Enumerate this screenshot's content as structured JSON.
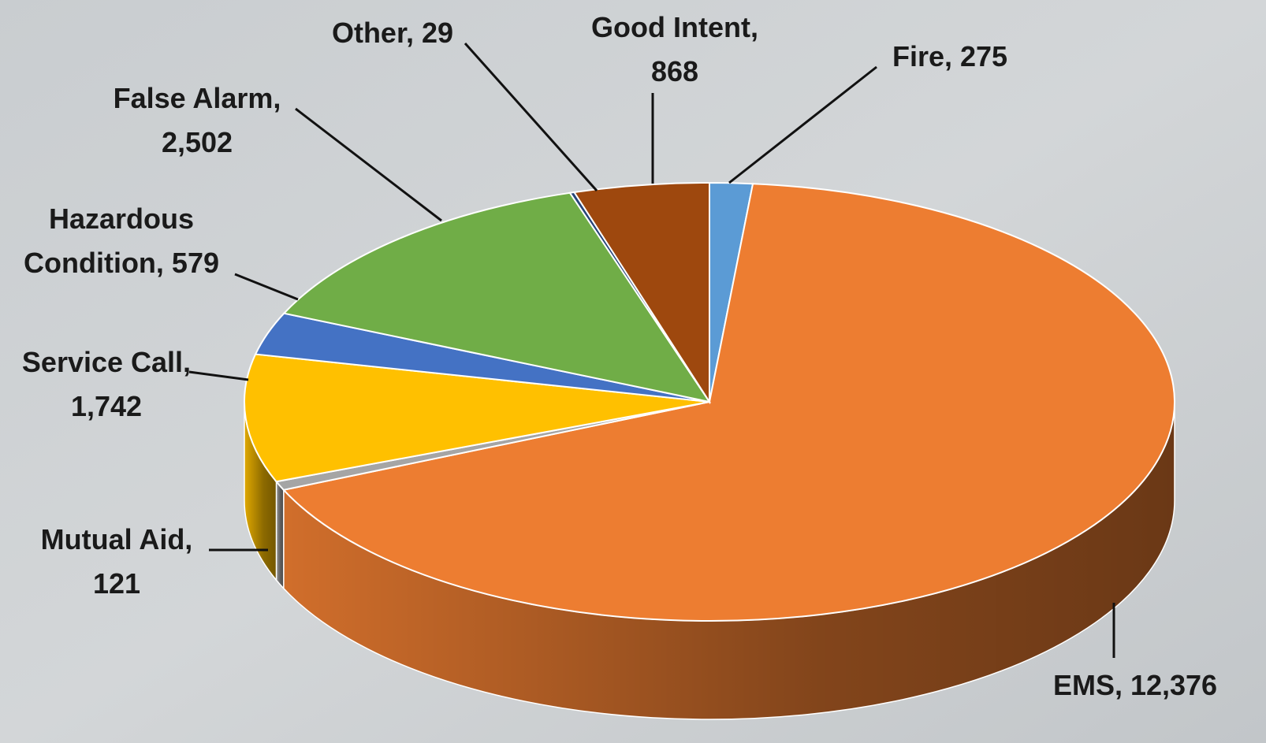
{
  "chart_data": {
    "type": "pie",
    "values": [
      275,
      12376,
      121,
      1742,
      579,
      2502,
      29,
      868
    ],
    "value_labels": [
      "Fire, 275",
      "EMS, 12,376",
      "Mutual Aid, 121",
      "Service Call, 1,742",
      "Hazardous Condition, 579",
      "False Alarm, 2,502",
      "Other, 29",
      "Good Intent, 868"
    ],
    "colors": [
      "#5b9bd5",
      "#ed7d31",
      "#a5a5a5",
      "#ffc000",
      "#4472c4",
      "#70ad47",
      "#264478",
      "#9e480e"
    ]
  }
}
